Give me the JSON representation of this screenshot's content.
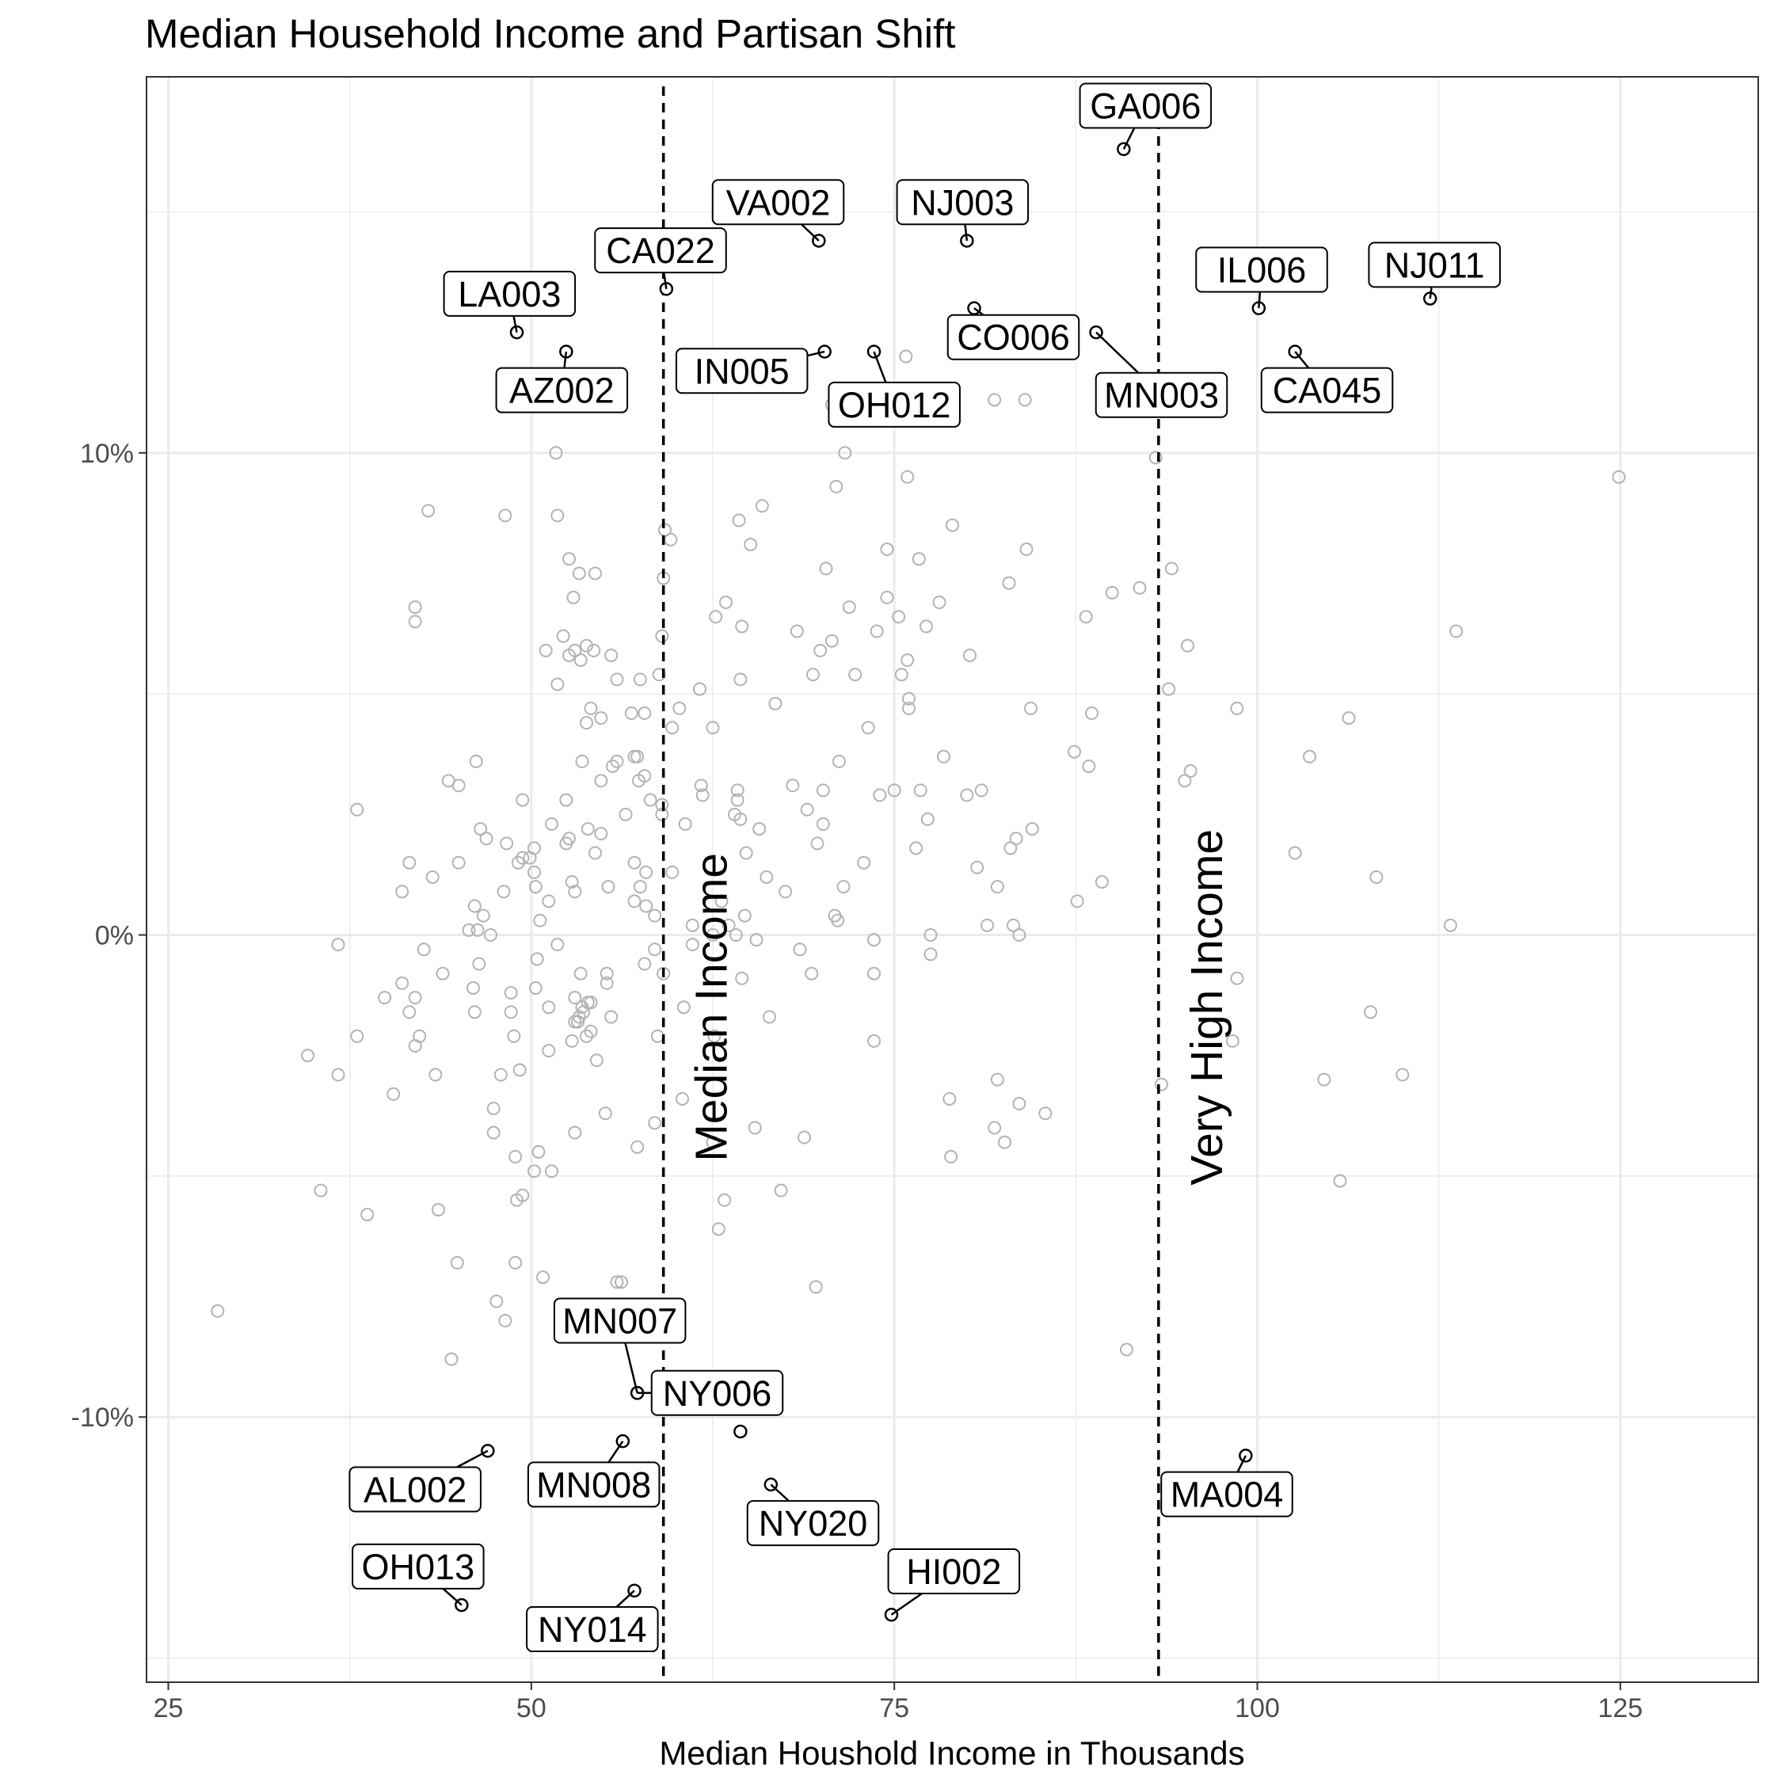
{
  "chart_data": {
    "type": "scatter",
    "title": "Median Household Income and Partisan Shift",
    "xlabel": "Median Houshold Income in Thousands",
    "ylabel": "",
    "xlim": [
      23.5,
      134.5
    ],
    "ylim": [
      -15.5,
      17.8
    ],
    "x_ticks": [
      25,
      50,
      75,
      100,
      125
    ],
    "x_tick_labels": [
      "25",
      "50",
      "75",
      "100",
      "125"
    ],
    "y_ticks": [
      -10,
      0,
      10
    ],
    "y_tick_labels": [
      "-10%",
      "0%",
      "10%"
    ],
    "grid": true,
    "reference_lines": [
      {
        "x": 59.1,
        "label": "Median Income"
      },
      {
        "x": 93.2,
        "label": "Very High Income"
      }
    ],
    "colors": {
      "background_points": "#b3b3b3",
      "highlight_points": "#000000",
      "grid": "#ebebeb",
      "reference_line": "#000000"
    },
    "labeled_points": [
      {
        "label": "GA006",
        "x": 90.8,
        "y": 16.3,
        "lx": 92.3,
        "ly": 17.2
      },
      {
        "label": "VA002",
        "x": 69.8,
        "y": 14.4,
        "lx": 67.0,
        "ly": 15.2
      },
      {
        "label": "NJ003",
        "x": 80.0,
        "y": 14.4,
        "lx": 79.7,
        "ly": 15.2
      },
      {
        "label": "CA022",
        "x": 59.3,
        "y": 13.4,
        "lx": 58.9,
        "ly": 14.2
      },
      {
        "label": "LA003",
        "x": 49.0,
        "y": 12.5,
        "lx": 48.5,
        "ly": 13.3
      },
      {
        "label": "IL006",
        "x": 100.1,
        "y": 13.0,
        "lx": 100.3,
        "ly": 13.8
      },
      {
        "label": "NJ011",
        "x": 111.9,
        "y": 13.2,
        "lx": 112.2,
        "ly": 13.9
      },
      {
        "label": "AZ002",
        "x": 52.4,
        "y": 12.1,
        "lx": 52.1,
        "ly": 11.3
      },
      {
        "label": "IN005",
        "x": 70.2,
        "y": 12.1,
        "lx": 64.5,
        "ly": 11.7
      },
      {
        "label": "OH012",
        "x": 73.6,
        "y": 12.1,
        "lx": 75.0,
        "ly": 11.0
      },
      {
        "label": "CO006",
        "x": 80.5,
        "y": 13.0,
        "lx": 83.2,
        "ly": 12.4
      },
      {
        "label": "MN003",
        "x": 88.9,
        "y": 12.5,
        "lx": 93.4,
        "ly": 11.2
      },
      {
        "label": "CA045",
        "x": 102.6,
        "y": 12.1,
        "lx": 104.8,
        "ly": 11.3
      },
      {
        "label": "MN007",
        "x": 57.3,
        "y": -9.5,
        "lx": 56.1,
        "ly": -8.0
      },
      {
        "label": "NY006",
        "x": 57.3,
        "y": -9.5,
        "lx": 62.8,
        "ly": -9.5
      },
      {
        "label": "AL002",
        "x": 47.0,
        "y": -10.7,
        "lx": 42.0,
        "ly": -11.5
      },
      {
        "label": "MN008",
        "x": 56.3,
        "y": -10.5,
        "lx": 54.3,
        "ly": -11.4
      },
      {
        "label": "NY020",
        "x": 66.5,
        "y": -11.4,
        "lx": 69.4,
        "ly": -12.2
      },
      {
        "label": "MA004",
        "x": 99.2,
        "y": -10.8,
        "lx": 97.9,
        "ly": -11.6
      },
      {
        "label": "OH013",
        "x": 45.2,
        "y": -13.9,
        "lx": 42.2,
        "ly": -13.1
      },
      {
        "label": "HI002",
        "x": 74.8,
        "y": -14.1,
        "lx": 79.1,
        "ly": -13.2
      },
      {
        "label": "NY014",
        "x": 57.1,
        "y": -13.6,
        "lx": 54.2,
        "ly": -14.4
      },
      {
        "label": "",
        "x": 64.4,
        "y": -10.3
      }
    ],
    "other_points": [
      [
        28.4,
        -7.8
      ],
      [
        34.6,
        -2.5
      ],
      [
        35.5,
        -5.3
      ],
      [
        36.7,
        -0.2
      ],
      [
        36.7,
        -2.9
      ],
      [
        38.0,
        -2.1
      ],
      [
        38.0,
        2.6
      ],
      [
        38.7,
        -5.8
      ],
      [
        39.9,
        -1.3
      ],
      [
        40.5,
        -3.3
      ],
      [
        41.1,
        0.9
      ],
      [
        41.1,
        -1.0
      ],
      [
        41.6,
        1.5
      ],
      [
        41.6,
        -1.6
      ],
      [
        42.0,
        -1.3
      ],
      [
        42.0,
        -2.3
      ],
      [
        42.0,
        6.5
      ],
      [
        42.0,
        6.8
      ],
      [
        42.3,
        -2.1
      ],
      [
        42.6,
        -0.3
      ],
      [
        42.9,
        8.8
      ],
      [
        43.2,
        1.2
      ],
      [
        43.4,
        -2.9
      ],
      [
        43.6,
        -5.7
      ],
      [
        43.9,
        -0.8
      ],
      [
        44.3,
        3.2
      ],
      [
        44.5,
        -8.8
      ],
      [
        44.9,
        -6.8
      ],
      [
        45.0,
        1.5
      ],
      [
        45.0,
        3.1
      ],
      [
        45.7,
        0.1
      ],
      [
        46.0,
        -1.1
      ],
      [
        46.1,
        0.6
      ],
      [
        46.1,
        -1.6
      ],
      [
        46.2,
        3.6
      ],
      [
        46.3,
        0.1
      ],
      [
        46.4,
        -0.6
      ],
      [
        46.5,
        2.2
      ],
      [
        46.7,
        0.4
      ],
      [
        46.9,
        2.0
      ],
      [
        47.2,
        0.0
      ],
      [
        47.4,
        -3.6
      ],
      [
        47.4,
        -4.1
      ],
      [
        47.6,
        -7.6
      ],
      [
        47.9,
        -2.9
      ],
      [
        48.1,
        0.9
      ],
      [
        48.2,
        8.7
      ],
      [
        48.2,
        -8.0
      ],
      [
        48.3,
        1.9
      ],
      [
        48.6,
        -1.6
      ],
      [
        48.6,
        -1.2
      ],
      [
        48.8,
        -2.1
      ],
      [
        48.9,
        -4.6
      ],
      [
        48.9,
        -6.8
      ],
      [
        49.0,
        -5.5
      ],
      [
        49.2,
        -2.8
      ],
      [
        49.4,
        -5.4
      ],
      [
        49.4,
        2.8
      ],
      [
        49.4,
        1.6
      ],
      [
        49.9,
        1.6
      ],
      [
        50.2,
        1.3
      ],
      [
        50.2,
        1.8
      ],
      [
        50.2,
        -4.9
      ],
      [
        50.3,
        1.0
      ],
      [
        50.3,
        -1.1
      ],
      [
        50.4,
        -0.5
      ],
      [
        50.5,
        -4.5
      ],
      [
        50.6,
        0.3
      ],
      [
        50.8,
        -7.1
      ],
      [
        51.0,
        5.9
      ],
      [
        51.2,
        -1.5
      ],
      [
        51.2,
        -2.4
      ],
      [
        51.2,
        0.7
      ],
      [
        51.4,
        -4.9
      ],
      [
        51.4,
        2.3
      ],
      [
        51.7,
        10.0
      ],
      [
        51.8,
        8.7
      ],
      [
        51.8,
        5.2
      ],
      [
        51.8,
        -0.2
      ],
      [
        52.2,
        6.2
      ],
      [
        52.4,
        2.8
      ],
      [
        52.4,
        1.9
      ],
      [
        52.6,
        7.8
      ],
      [
        52.6,
        2.0
      ],
      [
        52.6,
        5.8
      ],
      [
        52.8,
        -2.2
      ],
      [
        52.8,
        1.1
      ],
      [
        52.9,
        7.0
      ],
      [
        53.0,
        -1.8
      ],
      [
        53.0,
        -1.3
      ],
      [
        53.0,
        0.9
      ],
      [
        53.0,
        -4.1
      ],
      [
        53.2,
        -1.8
      ],
      [
        53.3,
        -1.7
      ],
      [
        53.3,
        7.5
      ],
      [
        53.4,
        -0.8
      ],
      [
        53.4,
        5.7
      ],
      [
        53.5,
        -1.5
      ],
      [
        53.5,
        3.6
      ],
      [
        53.6,
        -1.6
      ],
      [
        53.8,
        6.0
      ],
      [
        53.8,
        -2.1
      ],
      [
        53.8,
        4.4
      ],
      [
        53.9,
        2.2
      ],
      [
        53.9,
        -1.4
      ],
      [
        54.1,
        -2.0
      ],
      [
        54.1,
        4.7
      ],
      [
        54.1,
        -1.4
      ],
      [
        54.3,
        5.9
      ],
      [
        54.4,
        7.5
      ],
      [
        54.4,
        1.7
      ],
      [
        54.5,
        -2.6
      ],
      [
        54.8,
        2.1
      ],
      [
        54.8,
        3.2
      ],
      [
        54.8,
        4.5
      ],
      [
        55.1,
        -3.7
      ],
      [
        55.2,
        -0.8
      ],
      [
        55.2,
        -1.0
      ],
      [
        55.3,
        1.0
      ],
      [
        55.5,
        -1.7
      ],
      [
        55.6,
        3.5
      ],
      [
        55.9,
        5.3
      ],
      [
        55.9,
        3.6
      ],
      [
        55.9,
        -7.2
      ],
      [
        56.2,
        -7.2
      ],
      [
        56.5,
        2.5
      ],
      [
        56.9,
        4.6
      ],
      [
        57.1,
        0.7
      ],
      [
        57.1,
        1.5
      ],
      [
        57.1,
        3.7
      ],
      [
        57.3,
        -4.4
      ],
      [
        57.3,
        3.7
      ],
      [
        57.4,
        3.2
      ],
      [
        57.5,
        5.3
      ],
      [
        57.5,
        1.0
      ],
      [
        57.8,
        4.6
      ],
      [
        57.8,
        3.3
      ],
      [
        57.8,
        -0.6
      ],
      [
        57.9,
        1.3
      ],
      [
        57.9,
        0.6
      ],
      [
        58.2,
        2.8
      ],
      [
        58.5,
        0.4
      ],
      [
        58.5,
        -0.3
      ],
      [
        58.5,
        -3.9
      ],
      [
        58.7,
        -2.1
      ],
      [
        58.8,
        5.4
      ],
      [
        59.0,
        6.2
      ],
      [
        59.0,
        2.7
      ],
      [
        59.0,
        2.5
      ],
      [
        59.1,
        7.4
      ],
      [
        59.1,
        -0.8
      ],
      [
        59.2,
        8.4
      ],
      [
        59.6,
        8.2
      ],
      [
        59.7,
        1.3
      ],
      [
        59.7,
        4.3
      ],
      [
        60.2,
        4.7
      ],
      [
        60.4,
        -3.4
      ],
      [
        60.5,
        -1.5
      ],
      [
        60.6,
        2.3
      ],
      [
        61.1,
        0.2
      ],
      [
        61.6,
        5.1
      ],
      [
        61.7,
        3.1
      ],
      [
        61.8,
        2.9
      ],
      [
        62.5,
        4.3
      ],
      [
        62.5,
        0.0
      ],
      [
        62.5,
        -4.3
      ],
      [
        62.6,
        -2.1
      ],
      [
        62.7,
        6.6
      ],
      [
        62.9,
        -6.1
      ],
      [
        63.1,
        0.7
      ],
      [
        63.3,
        -5.5
      ],
      [
        63.4,
        6.9
      ],
      [
        63.6,
        0.2
      ],
      [
        64.1,
        0.0
      ],
      [
        64.2,
        3.0
      ],
      [
        64.2,
        2.8
      ],
      [
        64.3,
        8.6
      ],
      [
        64.4,
        5.3
      ],
      [
        64.4,
        2.4
      ],
      [
        64.5,
        6.4
      ],
      [
        64.5,
        -0.9
      ],
      [
        64.7,
        0.4
      ],
      [
        64.8,
        1.7
      ],
      [
        65.1,
        8.1
      ],
      [
        65.4,
        -4.0
      ],
      [
        65.5,
        -0.1
      ],
      [
        65.7,
        2.2
      ],
      [
        65.9,
        8.9
      ],
      [
        66.2,
        1.2
      ],
      [
        66.4,
        -1.7
      ],
      [
        66.8,
        4.8
      ],
      [
        67.2,
        -5.3
      ],
      [
        67.5,
        0.9
      ],
      [
        68.0,
        3.1
      ],
      [
        68.3,
        6.3
      ],
      [
        68.5,
        -0.3
      ],
      [
        68.8,
        -4.2
      ],
      [
        69.0,
        2.6
      ],
      [
        69.3,
        -0.8
      ],
      [
        69.4,
        5.4
      ],
      [
        69.6,
        -7.3
      ],
      [
        69.7,
        1.9
      ],
      [
        69.9,
        5.9
      ],
      [
        70.1,
        3.0
      ],
      [
        70.1,
        2.3
      ],
      [
        70.3,
        7.6
      ],
      [
        70.7,
        6.1
      ],
      [
        70.7,
        11.0
      ],
      [
        70.9,
        0.4
      ],
      [
        71.0,
        9.3
      ],
      [
        71.0,
        11.0
      ],
      [
        71.1,
        0.3
      ],
      [
        71.2,
        3.6
      ],
      [
        71.5,
        1.0
      ],
      [
        71.6,
        10.0
      ],
      [
        71.9,
        6.8
      ],
      [
        72.3,
        5.4
      ],
      [
        72.9,
        1.5
      ],
      [
        73.2,
        4.3
      ],
      [
        73.6,
        -0.1
      ],
      [
        73.6,
        -0.8
      ],
      [
        73.6,
        -2.2
      ],
      [
        73.8,
        6.3
      ],
      [
        74.0,
        2.9
      ],
      [
        74.5,
        8.0
      ],
      [
        74.5,
        7.0
      ],
      [
        75.0,
        3.0
      ],
      [
        75.3,
        6.6
      ],
      [
        75.5,
        5.4
      ],
      [
        75.8,
        12.0
      ],
      [
        75.9,
        9.5
      ],
      [
        75.9,
        5.7
      ],
      [
        76.0,
        4.7
      ],
      [
        76.0,
        4.9
      ],
      [
        76.5,
        1.8
      ],
      [
        76.7,
        7.8
      ],
      [
        76.8,
        3.0
      ],
      [
        77.2,
        6.4
      ],
      [
        77.3,
        2.4
      ],
      [
        77.5,
        -0.4
      ],
      [
        77.5,
        0.0
      ],
      [
        78.1,
        6.9
      ],
      [
        78.4,
        3.7
      ],
      [
        78.8,
        -3.4
      ],
      [
        78.9,
        -4.6
      ],
      [
        79.0,
        8.5
      ],
      [
        80.0,
        2.9
      ],
      [
        80.2,
        5.8
      ],
      [
        80.7,
        1.4
      ],
      [
        81.0,
        3.0
      ],
      [
        81.4,
        0.2
      ],
      [
        81.9,
        -4.0
      ],
      [
        81.9,
        11.1
      ],
      [
        82.1,
        1.0
      ],
      [
        82.1,
        -3.0
      ],
      [
        82.6,
        -4.3
      ],
      [
        82.9,
        7.3
      ],
      [
        83.0,
        1.8
      ],
      [
        83.2,
        0.2
      ],
      [
        83.4,
        2.0
      ],
      [
        83.6,
        -3.5
      ],
      [
        83.6,
        0.0
      ],
      [
        84.1,
        8.0
      ],
      [
        84.4,
        4.7
      ],
      [
        84.5,
        12.1
      ],
      [
        84.5,
        2.2
      ],
      [
        85.4,
        -3.7
      ],
      [
        87.4,
        3.8
      ],
      [
        87.6,
        0.7
      ],
      [
        88.2,
        6.6
      ],
      [
        88.4,
        3.5
      ],
      [
        88.6,
        4.6
      ],
      [
        89.3,
        1.1
      ],
      [
        90.0,
        7.1
      ],
      [
        91.0,
        -8.6
      ],
      [
        91.9,
        7.2
      ],
      [
        93.0,
        9.9
      ],
      [
        93.4,
        -3.1
      ],
      [
        93.9,
        5.1
      ],
      [
        94.1,
        7.6
      ],
      [
        95.0,
        3.2
      ],
      [
        95.2,
        6.0
      ],
      [
        95.4,
        3.4
      ],
      [
        98.3,
        -2.2
      ],
      [
        98.6,
        -0.9
      ],
      [
        98.6,
        4.7
      ],
      [
        102.6,
        1.7
      ],
      [
        103.6,
        3.7
      ],
      [
        104.6,
        -3.0
      ],
      [
        105.7,
        -5.1
      ],
      [
        106.3,
        4.5
      ],
      [
        107.8,
        -1.6
      ],
      [
        108.2,
        1.2
      ],
      [
        110.0,
        -2.9
      ],
      [
        113.3,
        0.2
      ],
      [
        113.7,
        6.3
      ],
      [
        124.9,
        9.5
      ],
      [
        84.0,
        11.1
      ],
      [
        55.5,
        5.8
      ],
      [
        53.0,
        5.9
      ],
      [
        49.1,
        1.5
      ],
      [
        61.1,
        -0.2
      ],
      [
        64.0,
        2.5
      ]
    ]
  }
}
